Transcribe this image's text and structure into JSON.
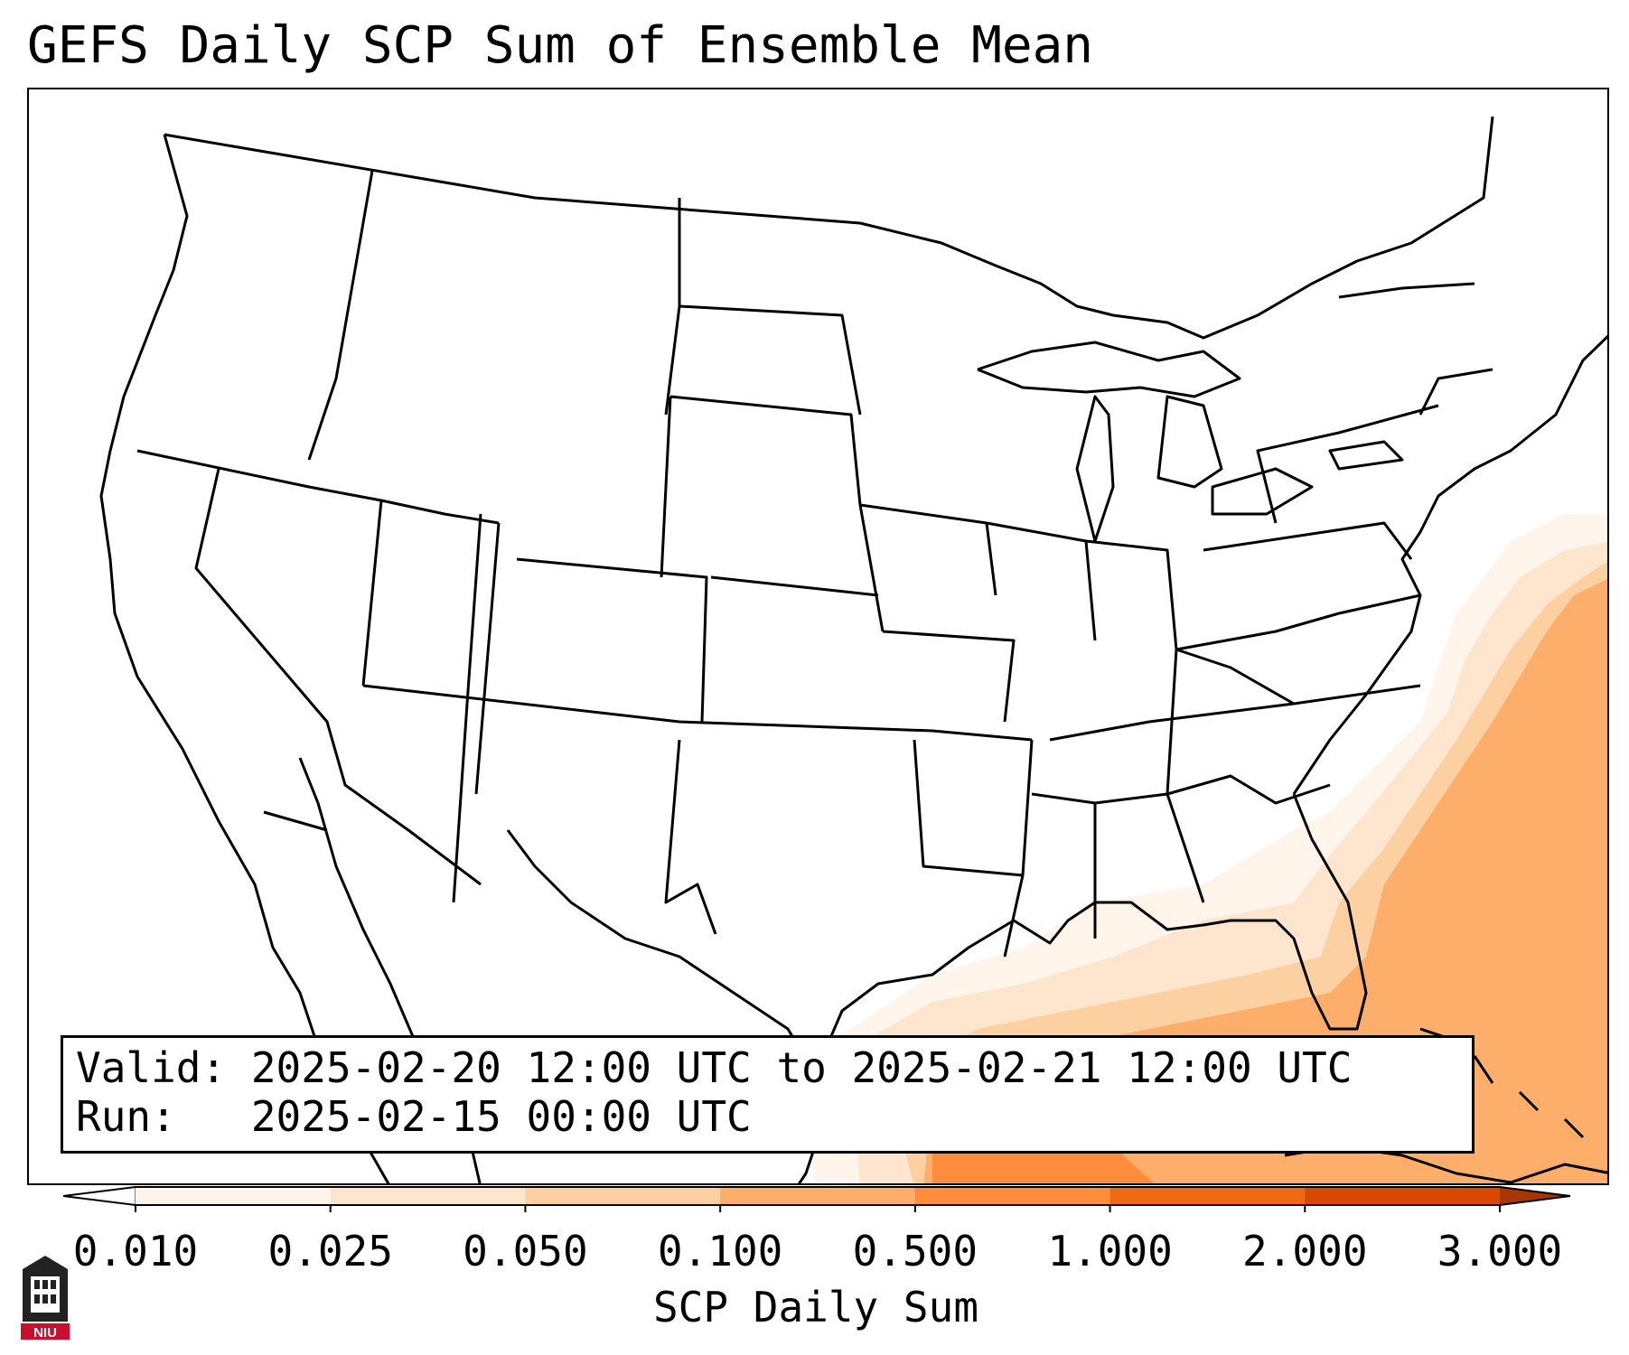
{
  "title": "GEFS Daily SCP Sum of Ensemble Mean",
  "info": {
    "valid_line": "Valid: 2025-02-20 12:00 UTC to 2025-02-21 12:00 UTC",
    "run_line": "Run:   2025-02-15 00:00 UTC"
  },
  "colorbar": {
    "label": "SCP Daily Sum",
    "ticks": [
      "0.010",
      "0.025",
      "0.050",
      "0.100",
      "0.500",
      "1.000",
      "2.000",
      "3.000"
    ],
    "colors": [
      "#fff5eb",
      "#fee6ce",
      "#fdd0a2",
      "#fdae6b",
      "#fd8d3c",
      "#f16913",
      "#d94801"
    ],
    "under_color": "#ffffff",
    "over_color": "#a63603"
  },
  "map": {
    "region": "Continental United States",
    "field_colors": {
      "light": "#fff5eb",
      "pale": "#fee6ce",
      "low": "#fdd0a2",
      "medium": "#fdae6b",
      "high": "#fd8d3c"
    }
  },
  "logo": {
    "text": "NIU",
    "icon": "university-building-icon"
  }
}
